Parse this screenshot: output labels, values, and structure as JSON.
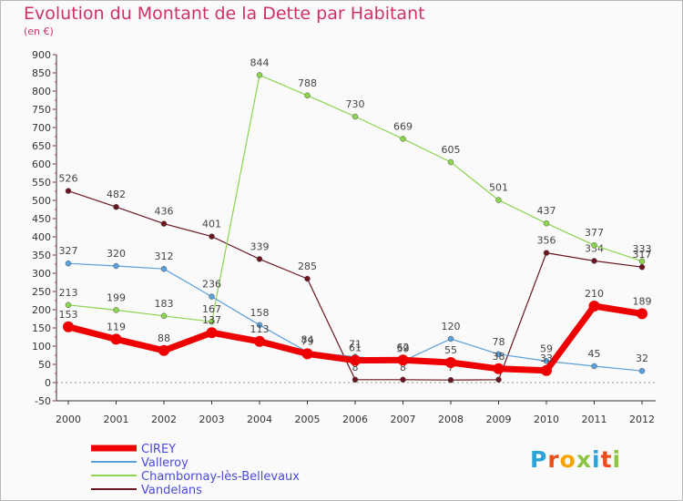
{
  "title": "Evolution du Montant de la Dette par Habitant",
  "subtitle": "(en €)",
  "logo": {
    "text": "Proxiti",
    "letters": [
      {
        "ch": "P",
        "color": "#2aa3d8"
      },
      {
        "ch": "r",
        "color": "#e94e1b"
      },
      {
        "ch": "o",
        "color": "#f5a300"
      },
      {
        "ch": "x",
        "color": "#8cc63e"
      },
      {
        "ch": "i",
        "color": "#2aa3d8"
      },
      {
        "ch": "t",
        "color": "#e94e1b"
      },
      {
        "ch": "i",
        "color": "#8cc63e"
      }
    ]
  },
  "chart_data": {
    "type": "line",
    "x": [
      "2000",
      "2001",
      "2002",
      "2003",
      "2004",
      "2005",
      "2006",
      "2007",
      "2008",
      "2009",
      "2010",
      "2011",
      "2012"
    ],
    "ylim": [
      -50,
      900
    ],
    "yticks": [
      -50,
      0,
      50,
      100,
      150,
      200,
      250,
      300,
      350,
      400,
      450,
      500,
      550,
      600,
      650,
      700,
      750,
      800,
      850,
      900
    ],
    "grid": false,
    "legend_position": "bottom-left",
    "series": [
      {
        "name": "Vandelans",
        "color": "#6b1520",
        "width": 1.2,
        "values": [
          526,
          482,
          436,
          401,
          339,
          285,
          8,
          8,
          7,
          8,
          356,
          334,
          317
        ],
        "labels": [
          "526",
          "482",
          "436",
          "401",
          "339",
          "285",
          "8",
          "8",
          "7",
          "",
          "356",
          "334",
          "317"
        ]
      },
      {
        "name": "Chambornay-lès-Bellevaux",
        "color": "#8cd44e",
        "width": 1.2,
        "values": [
          213,
          199,
          183,
          167,
          844,
          788,
          730,
          669,
          605,
          501,
          437,
          377,
          333
        ],
        "labels": [
          "213",
          "199",
          "183",
          "167",
          "844",
          "788",
          "730",
          "669",
          "605",
          "501",
          "437",
          "377",
          "333"
        ]
      },
      {
        "name": "Valleroy",
        "color": "#5aa0dc",
        "width": 1.2,
        "values": [
          327,
          320,
          312,
          236,
          158,
          84,
          71,
          59,
          120,
          78,
          59,
          45,
          32
        ],
        "labels": [
          "327",
          "320",
          "312",
          "236",
          "158",
          "84",
          "71",
          "59",
          "120",
          "78",
          "59",
          "45",
          "32"
        ]
      },
      {
        "name": "CIREY",
        "color": "#ee0000",
        "width": 7,
        "values": [
          153,
          119,
          88,
          137,
          113,
          79,
          61,
          62,
          55,
          38,
          33,
          210,
          189
        ],
        "labels": [
          "153",
          "119",
          "88",
          "137",
          "113",
          "79",
          "61",
          "62",
          "55",
          "38",
          "33",
          "210",
          "189"
        ]
      }
    ],
    "legend": [
      "CIREY",
      "Valleroy",
      "Chambornay-lès-Bellevaux",
      "Vandelans"
    ]
  }
}
